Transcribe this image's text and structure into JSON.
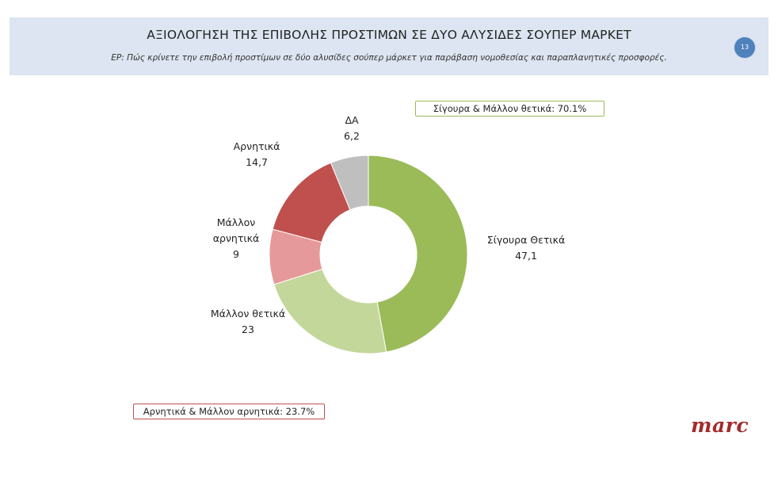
{
  "header": {
    "title": "ΑΞΙΟΛΟΓΗΣΗ ΤΗΣ ΕΠΙΒΟΛΗΣ ΠΡΟΣΤΙΜΩΝ ΣΕ ΔΥΟ ΑΛΥΣΙΔΕΣ ΣΟΥΠΕΡ ΜΑΡΚΕΤ",
    "subtitle": "ΕΡ: Πώς κρίνετε την επιβολή προστίμων σε δύο αλυσίδες σούπερ μάρκετ για παράβαση νομοθεσίας και παραπλανητικές προσφορές.",
    "page_number": "13"
  },
  "summary": {
    "positive": "Σίγουρα & Μάλλον θετικά: 70.1%",
    "negative": "Αρνητικά & Μάλλον αρνητικά: 23.7%"
  },
  "logo": "marc",
  "chart_data": {
    "type": "pie",
    "style": "donut",
    "start_angle_deg": 0,
    "direction": "clockwise",
    "slices": [
      {
        "label": "Σίγουρα Θετικά",
        "value": 47.1,
        "value_label": "47,1",
        "color": "#9bbb59"
      },
      {
        "label": "Μάλλον θετικά",
        "value": 23,
        "value_label": "23",
        "color": "#c4d79b"
      },
      {
        "label": "Μάλλον αρνητικά",
        "value": 9,
        "value_label": "9",
        "color": "#e6999a"
      },
      {
        "label": "Αρνητικά",
        "value": 14.7,
        "value_label": "14,7",
        "color": "#c0504d"
      },
      {
        "label": "ΔΑ",
        "value": 6.2,
        "value_label": "6,2",
        "color": "#bfbfbf"
      }
    ]
  }
}
